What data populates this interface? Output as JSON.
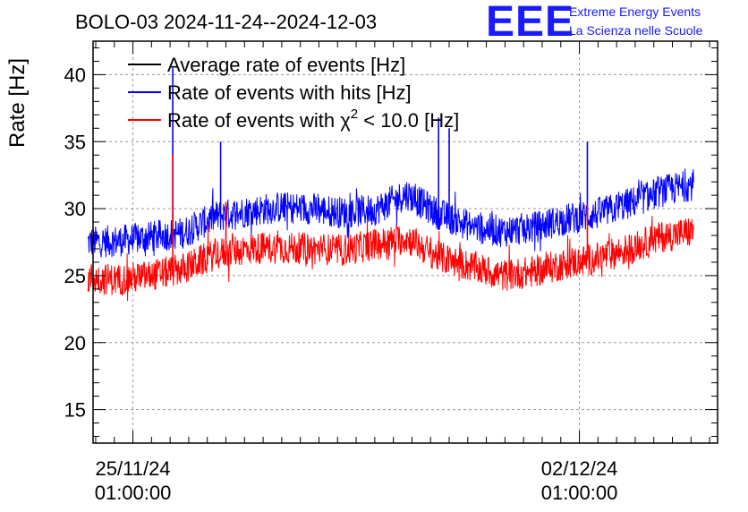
{
  "header": {
    "title": "BOLO-03 2024-11-24--2024-12-03",
    "logo_mark": "EEE",
    "logo_line1": "Extreme Energy Events",
    "logo_line2": "La Scienza nelle Scuole"
  },
  "chart_data": {
    "type": "line",
    "ylabel": "Rate [Hz]",
    "ylim": [
      12.5,
      42.5
    ],
    "yticks": [
      15,
      20,
      25,
      30,
      35,
      40
    ],
    "ytick_labels": [
      "15",
      "20",
      "25",
      "30",
      "35",
      "40"
    ],
    "xlim": [
      "2024-11-24 10:00",
      "2024-12-04 05:00"
    ],
    "x_tick_labels": [
      {
        "date": "25/11/24",
        "time": "01:00:00",
        "x": "2024-11-25 01:00"
      },
      {
        "date": "02/12/24",
        "time": "01:00:00",
        "x": "2024-12-02 01:00"
      }
    ],
    "grid": true,
    "legend_position": "top-left",
    "legend": [
      {
        "label": "Average rate of events [Hz]",
        "color": "#000000"
      },
      {
        "label": "Rate of events with hits [Hz]",
        "color": "#0000ff"
      },
      {
        "label_prefix": "Rate of events with ",
        "label_symbol": "χ",
        "label_sup": "2",
        "label_suffix": " < 10.0 [Hz]",
        "color": "#ff0000"
      }
    ],
    "series": [
      {
        "name": "Rate of events with hits [Hz]",
        "color": "#0000ff",
        "x": [
          "2024-11-24 08:00",
          "2024-11-24 20:00",
          "2024-11-25 08:00",
          "2024-11-25 20:00",
          "2024-11-26 08:00",
          "2024-11-26 20:00",
          "2024-11-27 08:00",
          "2024-11-27 20:00",
          "2024-11-28 08:00",
          "2024-11-28 20:00",
          "2024-11-29 08:00",
          "2024-11-29 20:00",
          "2024-11-30 08:00",
          "2024-11-30 20:00",
          "2024-12-01 08:00",
          "2024-12-01 20:00",
          "2024-12-02 08:00",
          "2024-12-02 20:00",
          "2024-12-03 08:00",
          "2024-12-03 20:00"
        ],
        "y": [
          27.5,
          27.6,
          27.9,
          28.2,
          29.4,
          29.8,
          30.1,
          30.0,
          29.7,
          29.9,
          31.1,
          29.6,
          28.7,
          28.3,
          28.6,
          29.2,
          29.6,
          30.4,
          31.3,
          31.8
        ],
        "spread": 1.2,
        "spikes": [
          {
            "x": "2024-11-25 16:00",
            "y": 40.5
          },
          {
            "x": "2024-11-26 10:00",
            "y": 35.0
          },
          {
            "x": "2024-11-29 20:00",
            "y": 36.8
          },
          {
            "x": "2024-11-30 00:00",
            "y": 36.0
          },
          {
            "x": "2024-12-02 04:00",
            "y": 35.0
          }
        ]
      },
      {
        "name": "Rate of events with χ2 < 10.0 [Hz]",
        "color": "#ff0000",
        "x": [
          "2024-11-24 08:00",
          "2024-11-24 20:00",
          "2024-11-25 08:00",
          "2024-11-25 20:00",
          "2024-11-26 08:00",
          "2024-11-26 20:00",
          "2024-11-27 08:00",
          "2024-11-27 20:00",
          "2024-11-28 08:00",
          "2024-11-28 20:00",
          "2024-11-29 08:00",
          "2024-11-29 20:00",
          "2024-11-30 08:00",
          "2024-11-30 20:00",
          "2024-12-01 08:00",
          "2024-12-01 20:00",
          "2024-12-02 08:00",
          "2024-12-02 20:00",
          "2024-12-03 08:00",
          "2024-12-03 20:00"
        ],
        "y": [
          24.8,
          24.7,
          25.0,
          25.5,
          26.6,
          27.0,
          27.1,
          27.0,
          26.9,
          27.3,
          27.8,
          26.4,
          25.7,
          25.0,
          25.3,
          25.9,
          26.3,
          27.0,
          27.9,
          28.3
        ],
        "spread": 1.2,
        "spikes": [
          {
            "x": "2024-11-25 16:00",
            "y": 34.0
          },
          {
            "x": "2024-11-26 12:00",
            "y": 30.5
          },
          {
            "x": "2024-12-02 04:00",
            "y": 30.3
          }
        ]
      }
    ]
  }
}
